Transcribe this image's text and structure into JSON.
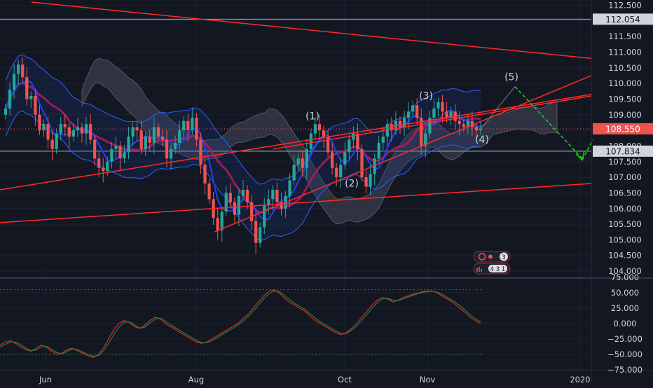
{
  "colors": {
    "background": "#131722",
    "grid": "#1e2230",
    "axis_text": "#d1d4dc",
    "bull": "#26a69a",
    "bear": "#ef5350",
    "trend": "#ff2a2a",
    "boll": "#2962ff",
    "ma_red": "#c2185b",
    "ma_blue": "#1e40ff",
    "forecast": "#22cc22",
    "cloud": "#3a3f4f",
    "rsi_k": "#d32f2f",
    "rsi_d": "#2e7d32"
  },
  "chart_data": [
    {
      "type": "candlestick",
      "panel": "price",
      "ylim": [
        103.8,
        112.6
      ],
      "ytick_values": [
        104.0,
        104.5,
        105.0,
        105.5,
        106.0,
        106.5,
        107.0,
        107.5,
        108.0,
        108.5,
        109.0,
        109.5,
        110.0,
        110.5,
        111.0,
        111.5,
        112.0,
        112.5
      ],
      "ytick_labels": [
        "104.000",
        "104.500",
        "105.000",
        "105.500",
        "106.000",
        "106.500",
        "107.000",
        "107.500",
        "108.000",
        "108.500",
        "109.000",
        "109.500",
        "110.000",
        "110.500",
        "111.000",
        "111.500",
        "112.000",
        "112.500"
      ],
      "xtick_labels": [
        "Jun",
        "Aug",
        "Oct",
        "Nov",
        "2020"
      ],
      "price_labels": [
        {
          "text": "112.054",
          "value": 112.054,
          "style": "level"
        },
        {
          "text": "108.550",
          "value": 108.55,
          "style": "last"
        },
        {
          "text": "107.834",
          "value": 107.834,
          "style": "level"
        }
      ],
      "wave_labels": [
        "(1)",
        "(2)",
        "(3)",
        "(4)",
        "(5)"
      ],
      "candles_close": [
        109.2,
        109.8,
        110.3,
        110.6,
        110.2,
        109.5,
        109.6,
        109.0,
        108.5,
        108.7,
        108.2,
        107.9,
        108.4,
        108.7,
        108.6,
        108.3,
        108.5,
        108.6,
        108.4,
        108.7,
        108.2,
        107.6,
        107.3,
        107.2,
        107.5,
        107.9,
        108.0,
        107.6,
        107.8,
        108.3,
        108.6,
        108.5,
        107.9,
        108.3,
        108.1,
        108.6,
        108.3,
        108.2,
        107.6,
        107.9,
        108.1,
        108.5,
        108.8,
        108.5,
        108.9,
        108.2,
        107.4,
        106.8,
        106.3,
        105.7,
        105.3,
        105.9,
        106.5,
        106.2,
        105.8,
        106.4,
        106.6,
        106.2,
        105.6,
        104.9,
        105.4,
        106.1,
        106.3,
        106.6,
        106.2,
        106.0,
        106.4,
        106.9,
        107.4,
        107.6,
        107.3,
        107.9,
        108.4,
        108.7,
        108.5,
        108.3,
        107.8,
        107.3,
        107.0,
        107.4,
        107.8,
        108.2,
        108.4,
        107.9,
        107.0,
        106.7,
        107.1,
        107.6,
        108.1,
        108.3,
        108.7,
        108.5,
        108.8,
        108.6,
        108.9,
        109.1,
        109.3,
        108.9,
        108.0,
        108.4,
        108.9,
        109.2,
        109.4,
        109.1,
        108.9,
        109.1,
        108.8,
        108.7,
        108.6,
        108.8,
        108.6,
        108.5,
        108.55
      ]
    },
    {
      "type": "line",
      "panel": "stoch_rsi",
      "ylim": [
        -80,
        80
      ],
      "ytick_values": [
        75,
        50,
        25,
        0,
        -25,
        -50,
        -75
      ],
      "ytick_labels": [
        "75.000",
        "50.000",
        "25.000",
        "0.000",
        "−25.000",
        "−50.000",
        "−75.000"
      ],
      "reference_levels": [
        55,
        -50
      ],
      "series": [
        {
          "values": [
            -35,
            -30,
            -28,
            -32,
            -38,
            -42,
            -45,
            -40,
            -35,
            -38,
            -45,
            -50,
            -48,
            -42,
            -40,
            -44,
            -48,
            -52,
            -55,
            -50,
            -40,
            -25,
            -10,
            0,
            5,
            2,
            -5,
            -8,
            -3,
            5,
            10,
            8,
            0,
            -5,
            -10,
            -15,
            -20,
            -25,
            -30,
            -32,
            -30,
            -25,
            -20,
            -15,
            -10,
            -5,
            0,
            8,
            15,
            25,
            35,
            45,
            52,
            55,
            50,
            42,
            35,
            30,
            25,
            20,
            12,
            5,
            0,
            -5,
            -10,
            -15,
            -18,
            -15,
            -8,
            0,
            10,
            20,
            30,
            38,
            42,
            40,
            35,
            38,
            42,
            45,
            48,
            50,
            52,
            53,
            52,
            48,
            42,
            38,
            32,
            25,
            18,
            10,
            5,
            0
          ]
        },
        {
          "values": [
            -38,
            -34,
            -30,
            -30,
            -34,
            -40,
            -44,
            -43,
            -38,
            -37,
            -42,
            -47,
            -49,
            -45,
            -41,
            -42,
            -46,
            -50,
            -53,
            -52,
            -45,
            -32,
            -18,
            -6,
            2,
            3,
            -2,
            -7,
            -6,
            1,
            7,
            9,
            4,
            -2,
            -7,
            -12,
            -17,
            -22,
            -27,
            -31,
            -31,
            -28,
            -23,
            -18,
            -13,
            -8,
            -3,
            4,
            11,
            20,
            30,
            40,
            48,
            53,
            52,
            46,
            39,
            33,
            28,
            23,
            16,
            9,
            3,
            -2,
            -7,
            -12,
            -16,
            -16,
            -11,
            -4,
            5,
            15,
            25,
            34,
            40,
            41,
            38,
            37,
            40,
            43,
            46,
            49,
            51,
            52,
            52,
            50,
            45,
            40,
            35,
            29,
            22,
            14,
            8,
            3
          ]
        }
      ]
    }
  ],
  "indicator_badges": {
    "badge1_count": "3",
    "badge2_values": "4 3 1"
  }
}
